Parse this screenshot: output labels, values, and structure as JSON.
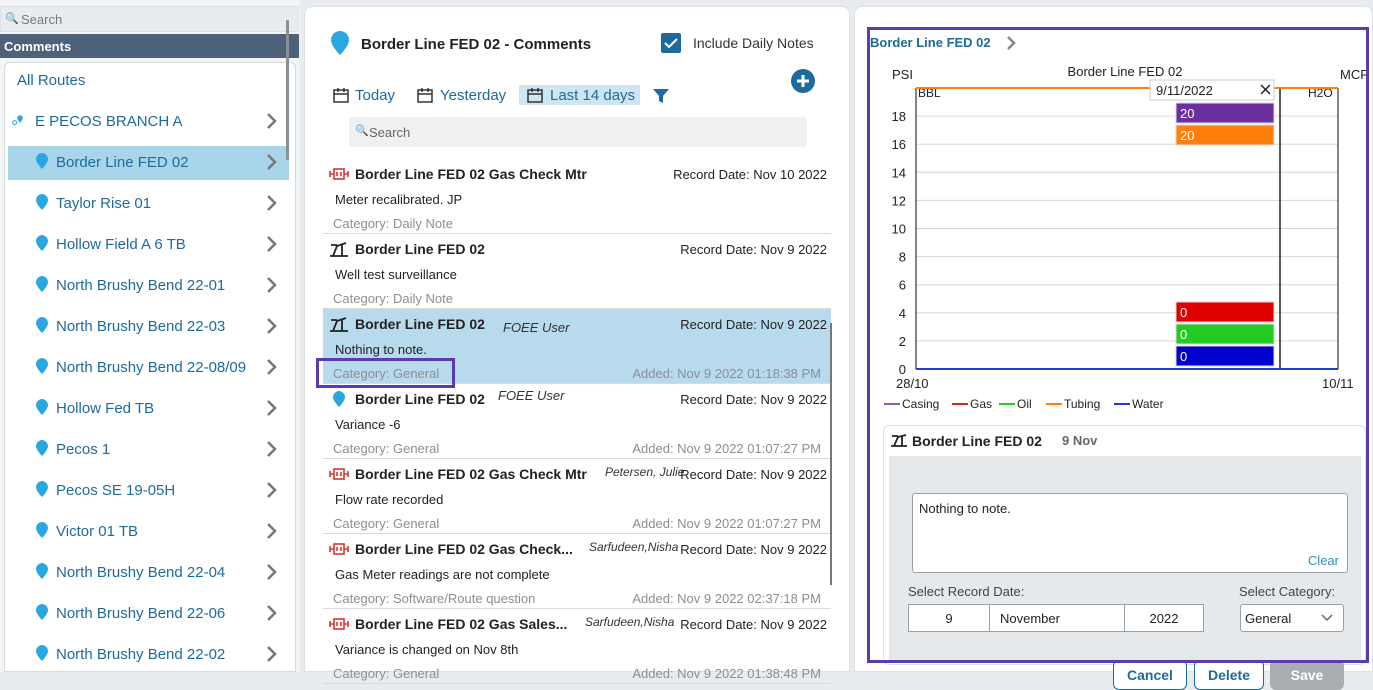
{
  "left": {
    "search_placeholder": "Search",
    "header": "Comments",
    "items": [
      {
        "label": "All Routes"
      },
      {
        "label": "E PECOS BRANCH A"
      },
      {
        "label": "Border Line FED 02"
      },
      {
        "label": "Taylor Rise 01"
      },
      {
        "label": "Hollow Field A 6 TB"
      },
      {
        "label": "North Brushy Bend 22-01"
      },
      {
        "label": "North Brushy Bend 22-03"
      },
      {
        "label": "North Brushy Bend 22-08/09"
      },
      {
        "label": "Hollow Fed TB"
      },
      {
        "label": "Pecos 1"
      },
      {
        "label": "Pecos SE 19-05H"
      },
      {
        "label": "Victor 01 TB"
      },
      {
        "label": "North Brushy Bend 22-04"
      },
      {
        "label": "North Brushy Bend 22-06"
      },
      {
        "label": "North Brushy Bend 22-02"
      }
    ]
  },
  "middle": {
    "title": "Border Line FED 02 - Comments",
    "include_daily": "Include Daily Notes",
    "today": "Today",
    "yesterday": "Yesterday",
    "last14": "Last 14 days",
    "search_placeholder": "Search",
    "comments": [
      {
        "name": "Border Line FED 02 Gas Check Mtr",
        "user": "",
        "record": "Record Date: Nov 10 2022",
        "text": "Meter recalibrated. JP",
        "category": "Category: Daily Note",
        "added": ""
      },
      {
        "name": "Border Line FED 02",
        "user": "",
        "record": "Record Date: Nov 9 2022",
        "text": "Well test surveillance",
        "category": "Category: Daily Note",
        "added": ""
      },
      {
        "name": "Border Line FED 02",
        "user": "FOEE User",
        "record": "Record Date: Nov 9 2022",
        "text": "Nothing to note.",
        "category": "Category: General",
        "added": "Added: Nov 9 2022 01:18:38 PM"
      },
      {
        "name": "Border Line FED 02",
        "user": "FOEE User",
        "record": "Record Date: Nov 9 2022",
        "text": "Variance -6",
        "category": "Category: General",
        "added": "Added: Nov 9 2022 01:07:27 PM"
      },
      {
        "name": "Border Line FED 02 Gas Check Mtr",
        "user": "Petersen, Julie",
        "record": "Record Date: Nov 9 2022",
        "text": "Flow rate recorded",
        "category": "Category: General",
        "added": "Added: Nov 9 2022 01:07:27 PM"
      },
      {
        "name": "Border Line FED 02 Gas Check...",
        "user": "Sarfudeen,Nisha",
        "record": "Record Date: Nov 9 2022",
        "text": "Gas Meter readings are not complete",
        "category": "Category: Software/Route question",
        "added": "Added: Nov 9 2022 02:37:18 PM"
      },
      {
        "name": "Border Line FED 02 Gas Sales...",
        "user": "Sarfudeen,Nisha",
        "record": "Record Date: Nov 9 2022",
        "text": "Variance is changed on Nov 8th",
        "category": "Category: General",
        "added": "Added: Nov 9 2022 01:38:48 PM"
      }
    ]
  },
  "right": {
    "breadcrumb": "Border Line FED 02",
    "editor": {
      "name": "Border Line FED 02",
      "date": "9 Nov",
      "note": "Nothing to note.",
      "clear": "Clear",
      "select_date_label": "Select Record Date:",
      "select_cat_label": "Select Category:",
      "day": "9",
      "month": "November",
      "year": "2022",
      "category": "General",
      "cancel": "Cancel",
      "delete": "Delete",
      "save": "Save"
    }
  },
  "chart_data": {
    "type": "line",
    "title": "Border Line FED 02",
    "y_left_label": "PSI",
    "y_left_sub": "BBL",
    "y_right_label": "MCF",
    "y_right_sub": "H2O",
    "y_ticks": [
      0,
      2,
      4,
      6,
      8,
      10,
      12,
      14,
      16,
      18
    ],
    "ylim": [
      0,
      20
    ],
    "x_ticks": [
      "28/10",
      "10/11"
    ],
    "tooltip": {
      "date": "9/11/2022",
      "values": [
        {
          "series": "Casing",
          "value": "20",
          "color": "#6b2fa0"
        },
        {
          "series": "Tubing",
          "value": "20",
          "color": "#ff7f0e"
        },
        {
          "series": "Gas",
          "value": "0",
          "color": "#e00000"
        },
        {
          "series": "Oil",
          "value": "0",
          "color": "#22cc22"
        },
        {
          "series": "Water",
          "value": "0",
          "color": "#0000cc"
        }
      ]
    },
    "series": [
      {
        "name": "Casing",
        "color": "#8e5cb8",
        "values": [
          20,
          20
        ]
      },
      {
        "name": "Gas",
        "color": "#d62728",
        "values": [
          0,
          0
        ]
      },
      {
        "name": "Oil",
        "color": "#22cc22",
        "values": [
          0,
          0
        ]
      },
      {
        "name": "Tubing",
        "color": "#ff7f0e",
        "values": [
          20,
          20
        ]
      },
      {
        "name": "Water",
        "color": "#1f3fcc",
        "values": [
          0,
          0
        ]
      }
    ],
    "legend_position": "bottom"
  }
}
